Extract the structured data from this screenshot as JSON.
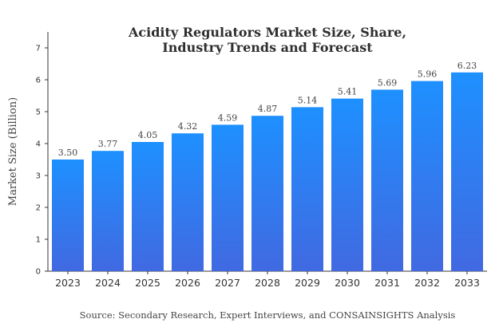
{
  "chart_data": {
    "type": "bar",
    "title_lines": [
      "Acidity Regulators Market Size, Share,",
      "Industry Trends and Forecast"
    ],
    "xlabel": "",
    "ylabel": "Market Size (Billion)",
    "categories": [
      "2023",
      "2024",
      "2025",
      "2026",
      "2027",
      "2028",
      "2029",
      "2030",
      "2031",
      "2032",
      "2033"
    ],
    "values": [
      3.5,
      3.77,
      4.05,
      4.32,
      4.59,
      4.87,
      5.14,
      5.41,
      5.69,
      5.96,
      6.23
    ],
    "value_labels": [
      "3.50",
      "3.77",
      "4.05",
      "4.32",
      "4.59",
      "4.87",
      "5.14",
      "5.41",
      "5.69",
      "5.96",
      "6.23"
    ],
    "ylim": [
      0,
      7.5
    ],
    "yticks": [
      "0",
      "1",
      "2",
      "3",
      "4",
      "5",
      "6",
      "7"
    ],
    "grid": false,
    "legend": "none",
    "bar_gradient": {
      "top": "#1e90ff",
      "bottom": "#4169e1"
    },
    "source": "Source: Secondary Research, Expert Interviews, and CONSAINSIGHTS Analysis"
  }
}
